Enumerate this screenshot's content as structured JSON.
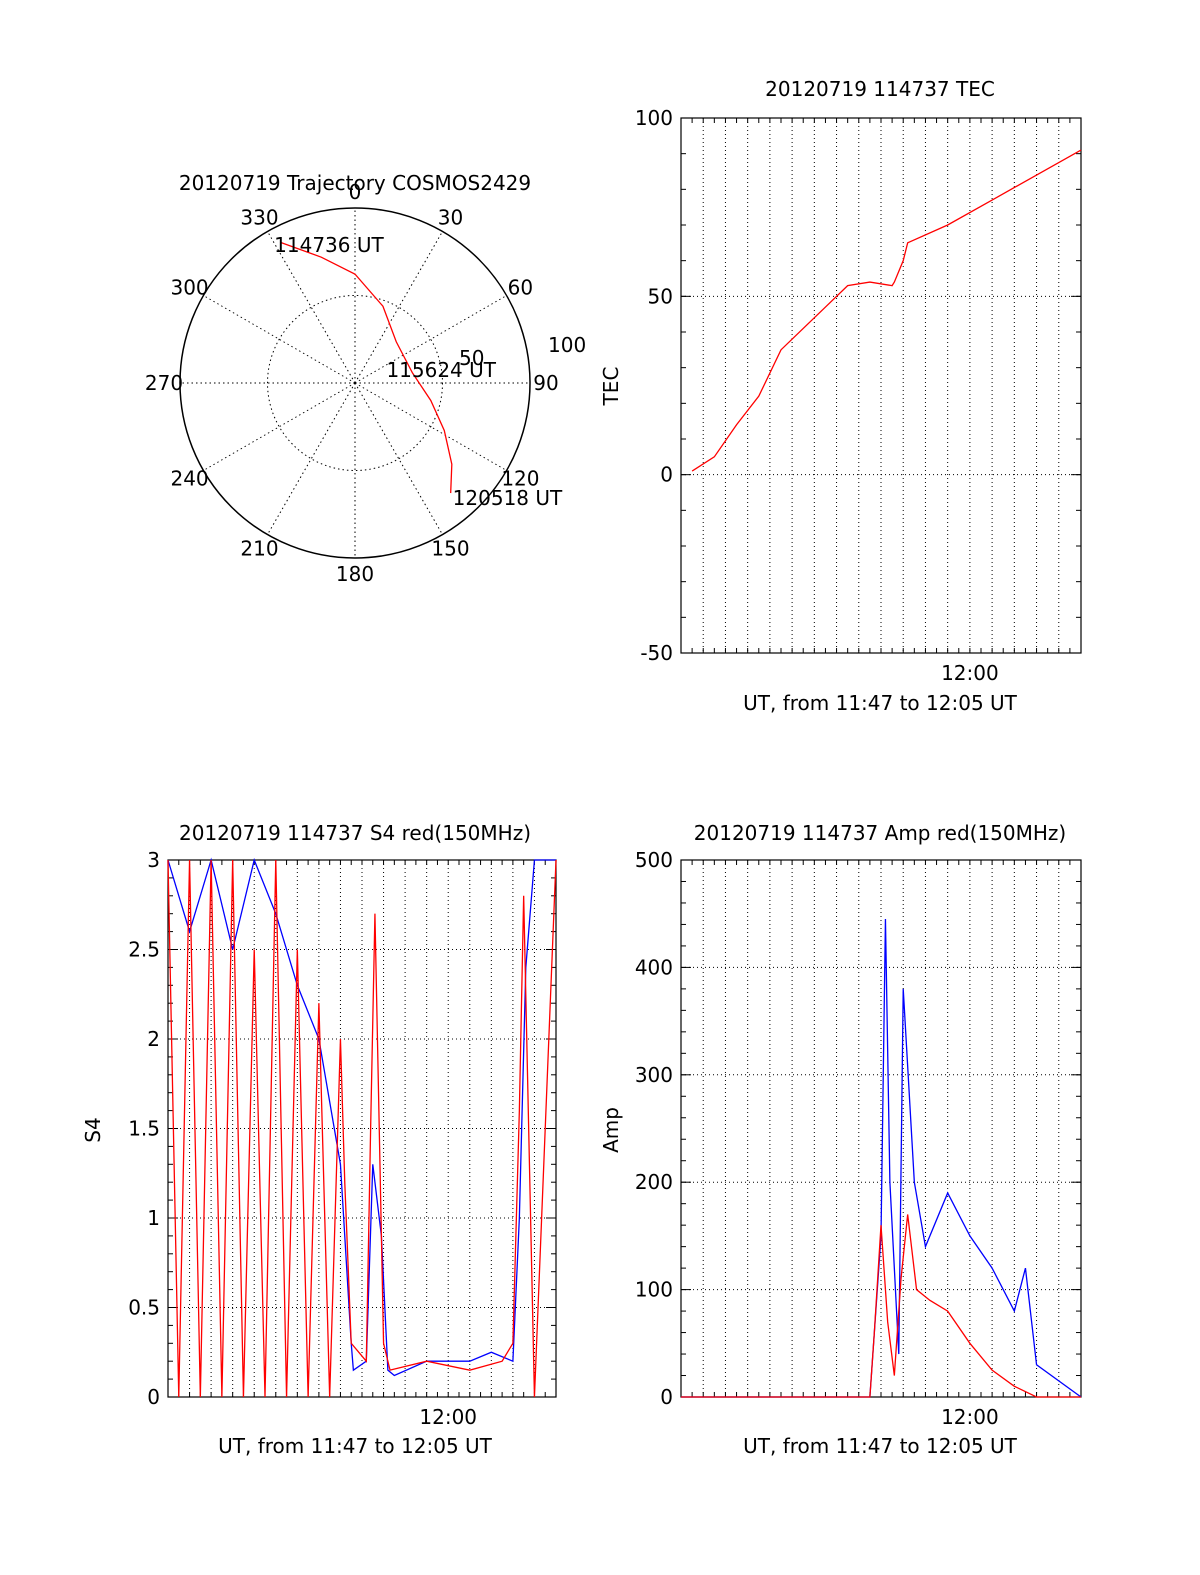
{
  "colors": {
    "red_series": "#ff0000",
    "blue_series": "#0000ff",
    "axis": "#000000",
    "grid": "#000000"
  },
  "chart_data": [
    {
      "type": "polar",
      "title": "20120719 Trajectory COSMOS2429",
      "angle_labels": [
        "0",
        "30",
        "60",
        "90",
        "120",
        "150",
        "180",
        "210",
        "240",
        "270",
        "300",
        "330"
      ],
      "radius_label": "100",
      "radius_mid_label": "50",
      "trajectory": [
        {
          "az": 332,
          "el": 8
        },
        {
          "az": 345,
          "el": 23
        },
        {
          "az": 0,
          "el": 34
        },
        {
          "az": 20,
          "el": 48
        },
        {
          "az": 45,
          "el": 60
        },
        {
          "az": 80,
          "el": 60
        },
        {
          "az": 103,
          "el": 50
        },
        {
          "az": 118,
          "el": 38
        },
        {
          "az": 130,
          "el": 25
        },
        {
          "az": 139,
          "el": 15
        }
      ],
      "annotations": [
        {
          "text": "114736 UT",
          "at": "start"
        },
        {
          "text": "115624 UT",
          "at": "middle"
        },
        {
          "text": "120518 UT",
          "at": "end"
        }
      ]
    },
    {
      "type": "line",
      "title": "20120719 114737 TEC",
      "ylabel": "TEC",
      "xlabel": "UT, from 11:47 to 12:05 UT",
      "ylim": [
        -50,
        100
      ],
      "yticks": [
        "-50",
        "0",
        "50",
        "100"
      ],
      "xtick_label": "12:00",
      "xlim_minutes": [
        0,
        18
      ],
      "series": [
        {
          "color": "red",
          "x": [
            0.5,
            1.5,
            2.5,
            3.5,
            4.5,
            5.5,
            6.5,
            7.5,
            8.5,
            9.5,
            9.6,
            10.0,
            10.2,
            12.0,
            14.0,
            16.0,
            18.0
          ],
          "y": [
            1,
            5,
            14,
            22,
            35,
            41,
            47,
            53,
            54,
            53,
            54,
            60,
            65,
            70,
            77,
            84,
            91
          ]
        }
      ]
    },
    {
      "type": "line",
      "title": "20120719 114737 S4 red(150MHz)",
      "ylabel": "S4",
      "xlabel": "UT, from 11:47 to 12:05 UT",
      "ylim": [
        0,
        3
      ],
      "yticks": [
        "0",
        "0.5",
        "1",
        "1.5",
        "2",
        "2.5",
        "3"
      ],
      "xtick_label": "12:00",
      "xlim_minutes": [
        0,
        18
      ],
      "series": [
        {
          "color": "blue",
          "x": [
            0,
            1,
            2,
            3,
            4,
            5,
            6,
            7,
            8,
            8.5,
            8.6,
            9.2,
            9.5,
            9.9,
            10.2,
            10.5,
            12,
            14,
            15,
            16,
            16.3,
            16.6,
            17,
            18
          ],
          "y": [
            3,
            2.6,
            3,
            2.5,
            3,
            2.7,
            2.3,
            2.0,
            1.3,
            0.3,
            0.15,
            0.2,
            1.3,
            0.9,
            0.15,
            0.12,
            0.2,
            0.2,
            0.25,
            0.2,
            1.0,
            2.4,
            3.0,
            3.0
          ]
        },
        {
          "color": "red",
          "x": [
            0,
            0.5,
            1,
            1.5,
            2,
            2.5,
            3,
            3.5,
            4,
            4.5,
            5,
            5.5,
            6,
            6.5,
            7,
            7.5,
            8,
            8.2,
            8.5,
            9.2,
            9.4,
            9.6,
            10.0,
            10.3,
            12,
            14,
            15.5,
            16,
            16.3,
            16.5,
            17,
            18
          ],
          "y": [
            3,
            0,
            3,
            0,
            3,
            0,
            3,
            0,
            2.5,
            0,
            3,
            0,
            2.5,
            0,
            2.2,
            0,
            2.0,
            1.2,
            0.3,
            0.2,
            1.5,
            2.7,
            0.3,
            0.15,
            0.2,
            0.15,
            0.2,
            0.3,
            1.6,
            2.8,
            0,
            3.0
          ]
        }
      ]
    },
    {
      "type": "line",
      "title": "20120719 114737 Amp red(150MHz)",
      "ylabel": "Amp",
      "xlabel": "UT, from 11:47 to 12:05 UT",
      "ylim": [
        0,
        500
      ],
      "yticks": [
        "0",
        "100",
        "200",
        "300",
        "400",
        "500"
      ],
      "xtick_label": "12:00",
      "xlim_minutes": [
        0,
        18
      ],
      "series": [
        {
          "color": "blue",
          "x": [
            0,
            8.5,
            8.6,
            9.0,
            9.2,
            9.4,
            9.8,
            10.0,
            10.5,
            11.0,
            12,
            13,
            14,
            15,
            15.5,
            16,
            18
          ],
          "y": [
            0,
            0,
            30,
            150,
            445,
            200,
            40,
            380,
            200,
            140,
            190,
            150,
            120,
            80,
            120,
            30,
            0
          ]
        },
        {
          "color": "red",
          "x": [
            0,
            8.5,
            8.7,
            9.0,
            9.3,
            9.6,
            9.9,
            10.2,
            10.6,
            11.2,
            12,
            13,
            14,
            15,
            16,
            18
          ],
          "y": [
            0,
            0,
            60,
            160,
            70,
            20,
            110,
            170,
            100,
            90,
            80,
            50,
            25,
            10,
            0,
            0
          ]
        }
      ]
    }
  ]
}
